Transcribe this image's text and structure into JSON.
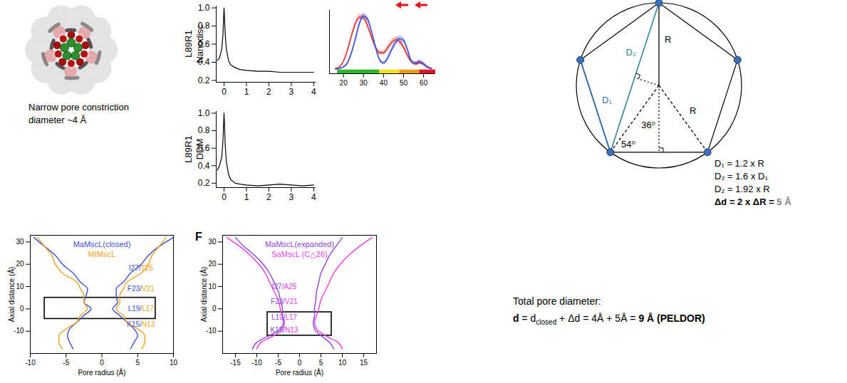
{
  "chart_data": [
    {
      "type": "line",
      "ylabel": "L89R1 Nanodisc",
      "color": "#000000",
      "x": [
        -0.3,
        -0.2,
        -0.1,
        -0.05,
        0,
        0.05,
        0.1,
        0.2,
        0.3,
        0.5,
        0.7,
        1,
        1.5,
        2,
        2.5,
        3,
        3.5,
        4
      ],
      "values": [
        0.42,
        0.45,
        0.55,
        0.7,
        1,
        0.72,
        0.55,
        0.42,
        0.37,
        0.34,
        0.32,
        0.31,
        0.3,
        0.3,
        0.29,
        0.29,
        0.29,
        0.29
      ],
      "xlim": [
        -0.35,
        4.1
      ],
      "xticks": [
        0,
        1,
        2,
        3,
        4
      ],
      "ylim": [
        0.18,
        1.02
      ],
      "yticks": [
        0.2,
        0.4,
        0.6,
        0.8,
        {
          "value": 1,
          "label": "1.0"
        }
      ]
    },
    {
      "type": "line",
      "ylabel": "L89R1 DDM",
      "color": "#000000",
      "x": [
        -0.3,
        -0.2,
        -0.1,
        -0.05,
        0,
        0.05,
        0.1,
        0.2,
        0.3,
        0.5,
        0.7,
        1,
        1.5,
        2,
        2.5,
        3,
        3.5,
        4
      ],
      "values": [
        0.35,
        0.4,
        0.5,
        0.68,
        1,
        0.65,
        0.45,
        0.3,
        0.24,
        0.2,
        0.19,
        0.18,
        0.17,
        0.18,
        0.19,
        0.18,
        0.17,
        0.18
      ],
      "xlim": [
        -0.35,
        4.1
      ],
      "xticks": [
        0,
        1,
        2,
        3,
        4
      ],
      "ylim": [
        0.15,
        1.02
      ],
      "yticks": [
        0.2,
        0.4,
        0.6,
        0.8,
        {
          "value": 1,
          "label": "1.0"
        }
      ]
    },
    {
      "type": "line",
      "tick_labels": "x",
      "x": [
        16,
        18,
        20,
        22,
        24,
        26,
        28,
        30,
        32,
        34,
        36,
        38,
        40,
        42,
        44,
        46,
        48,
        50,
        52,
        54,
        56,
        58,
        60,
        62,
        64
      ],
      "series": [
        {
          "color": "#e8312f",
          "values": [
            0.02,
            0.05,
            0.15,
            0.35,
            0.6,
            0.82,
            0.93,
            0.92,
            0.78,
            0.58,
            0.4,
            0.3,
            0.3,
            0.38,
            0.48,
            0.53,
            0.5,
            0.4,
            0.25,
            0.14,
            0.1,
            0.12,
            0.1,
            0.05,
            0.02
          ],
          "errors": [
            0.01,
            0.01,
            0.02,
            0.03,
            0.04,
            0.05,
            0.05,
            0.05,
            0.05,
            0.04,
            0.04,
            0.04,
            0.04,
            0.05,
            0.05,
            0.05,
            0.05,
            0.05,
            0.04,
            0.03,
            0.03,
            0.03,
            0.03,
            0.02,
            0.01
          ]
        },
        {
          "color": "#3f51d8",
          "values": [
            0.01,
            0.02,
            0.05,
            0.12,
            0.3,
            0.55,
            0.82,
            0.95,
            0.9,
            0.68,
            0.4,
            0.18,
            0.12,
            0.2,
            0.35,
            0.48,
            0.55,
            0.52,
            0.35,
            0.15,
            0.12,
            0.15,
            0.1,
            0.04,
            0.02
          ],
          "errors": [
            0.01,
            0.01,
            0.02,
            0.03,
            0.04,
            0.05,
            0.05,
            0.05,
            0.05,
            0.04,
            0.04,
            0.03,
            0.03,
            0.04,
            0.05,
            0.05,
            0.05,
            0.05,
            0.04,
            0.03,
            0.03,
            0.03,
            0.03,
            0.02,
            0.01
          ]
        }
      ],
      "color_bar": {
        "edges": [
          17,
          38,
          48,
          58,
          66
        ],
        "colors": [
          "#2db52d",
          "#f2e21b",
          "#f39c12",
          "#e8131f"
        ]
      },
      "xlim": [
        13,
        66
      ],
      "xticks": [
        20,
        30,
        40,
        50,
        60
      ],
      "ylim": [
        -0.07,
        1.05
      ]
    },
    {
      "type": "line",
      "xlabel": "Pore radius (Å)",
      "ylabel": "Axial distance (Å)",
      "legend": "top",
      "series": [
        {
          "name": "MaMscL(closed)",
          "color": "#3a4fd6",
          "axial": [
            32,
            28,
            24,
            20,
            16,
            12,
            9,
            6,
            3,
            0,
            -3,
            -6,
            -9,
            -12,
            -15,
            -18
          ],
          "radius_left": [
            -9.5,
            -8,
            -6.5,
            -5.5,
            -4,
            -3,
            -2,
            -2.2,
            -2.5,
            -1.5,
            -2.5,
            -3.5,
            -4.5,
            -4.8,
            -4.5,
            -4
          ],
          "radius_right": [
            10,
            8,
            6.5,
            5.5,
            4,
            3,
            2,
            2,
            2.2,
            1.5,
            2.5,
            3.5,
            4.5,
            5,
            4.5,
            4
          ]
        },
        {
          "name": "MtMscL",
          "color": "#f5a01a",
          "axial": [
            32,
            28,
            24,
            20,
            16,
            12,
            9,
            6,
            3,
            0,
            -3,
            -6,
            -9,
            -12,
            -15,
            -18
          ],
          "radius_left": [
            -9,
            -8,
            -7,
            -6.5,
            -5.5,
            -3.5,
            -3,
            -2.5,
            -2.5,
            -2,
            -3,
            -3.5,
            -5,
            -6,
            -6,
            -5.5
          ],
          "radius_right": [
            9,
            8,
            7,
            6.5,
            5.5,
            3.5,
            3,
            2.5,
            2.5,
            2,
            3,
            3.5,
            5,
            6,
            6,
            5.5
          ]
        }
      ],
      "annotations": [
        {
          "text": "I27/T25",
          "x": 5.5,
          "y": 18
        },
        {
          "text": "F23/V21",
          "x": 5.5,
          "y": 9
        },
        {
          "text": "L19/L17",
          "x": 5.5,
          "y": 0
        },
        {
          "text": "K15/N13",
          "x": 5.5,
          "y": -7
        }
      ],
      "highlight": {
        "x": [
          -8,
          7.5
        ],
        "y": [
          -4.5,
          5
        ]
      },
      "xlim": [
        -10,
        10
      ],
      "xticks": [
        -10,
        -5,
        0,
        5,
        10
      ],
      "ylim": [
        -20,
        33
      ],
      "yticks": [
        -10,
        0,
        10,
        20,
        30
      ]
    },
    {
      "type": "line",
      "panel_label": "F",
      "xlabel": "Pore radius (Å)",
      "ylabel": "Axial distance (Å)",
      "legend": "top",
      "series": [
        {
          "name": "MaMscL(expanded)",
          "color": "#8e44e0",
          "axial": [
            32,
            28,
            24,
            20,
            16,
            12,
            8,
            4,
            0,
            -3,
            -6,
            -9,
            -12,
            -15,
            -18
          ],
          "radius_left": [
            -15,
            -13,
            -10.5,
            -8.5,
            -7,
            -6,
            -5,
            -4.5,
            -4,
            -4,
            -3.8,
            -4.5,
            -7,
            -10,
            -11
          ],
          "radius_right": [
            10,
            8.5,
            7,
            6,
            5,
            4.5,
            4,
            3.8,
            3.5,
            3.5,
            3.2,
            3.5,
            5,
            7,
            8
          ]
        },
        {
          "name": "SaMscL (C△26)",
          "color": "#ee3ce8",
          "axial": [
            32,
            28,
            24,
            20,
            16,
            12,
            8,
            4,
            0,
            -3,
            -6,
            -9,
            -12,
            -15,
            -18
          ],
          "radius_left": [
            -17,
            -14,
            -11.5,
            -9.5,
            -8,
            -7,
            -6,
            -5,
            -4.5,
            -4,
            -3.5,
            -4,
            -6,
            -9,
            -10
          ],
          "radius_right": [
            17,
            14,
            11.5,
            9.5,
            8,
            7,
            6,
            5,
            4.5,
            4,
            3.5,
            4,
            6,
            9,
            10
          ]
        }
      ],
      "annotations": [
        {
          "text": "I27/A25",
          "x": -3.5,
          "y": 10
        },
        {
          "text": "F23/V21",
          "x": -3.5,
          "y": 3
        },
        {
          "text": "L19/L17",
          "x": -3.5,
          "y": -4
        },
        {
          "text": "K15/N13",
          "x": -3.5,
          "y": -9.5
        }
      ],
      "highlight": {
        "x": [
          -7.5,
          7.5
        ],
        "y": [
          -12,
          -1.5
        ]
      },
      "xlim": [
        -18,
        18
      ],
      "xticks": [
        -15,
        -10,
        -5,
        0,
        5,
        10,
        15
      ],
      "ylim": [
        -20,
        33
      ],
      "yticks": [
        -10,
        0,
        10,
        20,
        30
      ]
    }
  ],
  "structure_caption": [
    "Narrow pore constriction",
    "diameter ~4 Å"
  ],
  "geometry_diagram": {
    "labels": {
      "D1": "D₁",
      "D2": "D₂",
      "R_vertical": "R",
      "R_side": "R",
      "angle_center": "36⁰",
      "angle_vertex": "54⁰"
    },
    "equations": [
      "D₁ = 1.2 x R",
      "D₂ = 1.6 x D₁",
      "D₂ = 1.92 x R",
      "Δd = 2 x ΔR = 5 Å"
    ]
  },
  "pore_diameter": {
    "heading": "Total pore diameter:",
    "equation": [
      "d",
      " = d",
      "closed",
      " + Δd = 4Å + 5Å = ",
      "9 Å (PELDOR)"
    ]
  }
}
